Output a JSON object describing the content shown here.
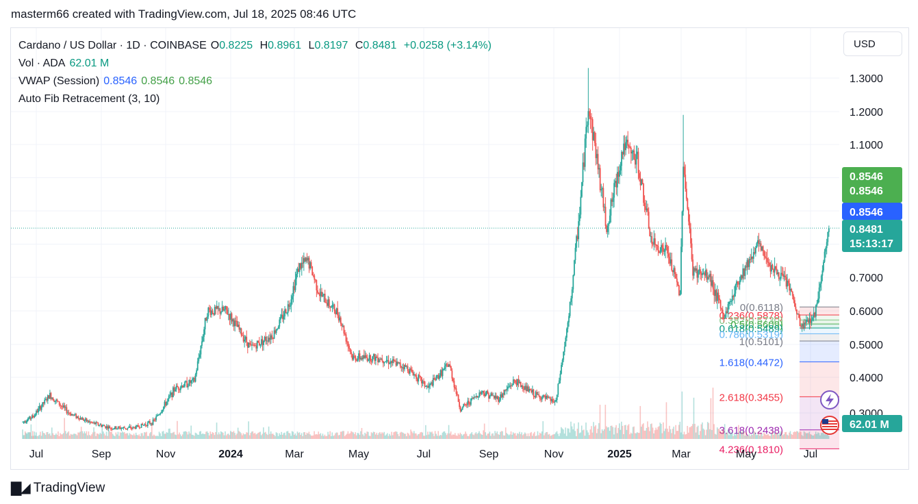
{
  "header": {
    "title": "masterm66 created with TradingView.com, Jul 18, 2025 08:46 UTC"
  },
  "legend": {
    "symbol": "Cardano / US Dollar · 1D · COINBASE",
    "open_label": "O",
    "open": "0.8225",
    "high_label": "H",
    "high": "0.8961",
    "low_label": "L",
    "low": "0.8197",
    "close_label": "C",
    "close": "0.8481",
    "change": "+0.0258 (+3.14%)",
    "vol_label": "Vol · ADA",
    "vol": "62.01 M",
    "vwap_label": "VWAP (Session)",
    "vwap1": "0.8546",
    "vwap2": "0.8546",
    "vwap3": "0.8546",
    "fib_label": "Auto Fib Retracement (3, 10)"
  },
  "currency": "USD",
  "price_tags": {
    "vwap_green_1": "0.8546",
    "vwap_green_2": "0.8546",
    "vwap_blue": "0.8546",
    "last_price": "0.8481",
    "countdown": "15:13:17",
    "volume": "62.01 M"
  },
  "colors": {
    "up": "#26a69a",
    "down": "#ef5350",
    "accent_blue": "#2962ff",
    "vwap_green": "#4caf50"
  },
  "footer": {
    "brand": "TradingView"
  },
  "chart_data": {
    "type": "candlestick",
    "symbol": "ADA/USD",
    "interval": "1D",
    "y_axis_ticks": [
      "1.3000",
      "1.2000",
      "1.1000",
      "0.7000",
      "0.6000",
      "0.5000",
      "0.4000",
      "0.3000"
    ],
    "x_axis_ticks": [
      "Jul",
      "Sep",
      "Nov",
      "2024",
      "Mar",
      "May",
      "Jul",
      "Sep",
      "Nov",
      "2025",
      "Mar",
      "May",
      "Jul"
    ],
    "price_trend": [
      {
        "date": "2023-06-15",
        "price": 0.27
      },
      {
        "date": "2023-06-28",
        "price": 0.29
      },
      {
        "date": "2023-07-14",
        "price": 0.35
      },
      {
        "date": "2023-08-01",
        "price": 0.3
      },
      {
        "date": "2023-08-20",
        "price": 0.27
      },
      {
        "date": "2023-09-10",
        "price": 0.25
      },
      {
        "date": "2023-10-01",
        "price": 0.25
      },
      {
        "date": "2023-10-20",
        "price": 0.27
      },
      {
        "date": "2023-11-10",
        "price": 0.37
      },
      {
        "date": "2023-11-28",
        "price": 0.39
      },
      {
        "date": "2023-12-10",
        "price": 0.6
      },
      {
        "date": "2023-12-28",
        "price": 0.6
      },
      {
        "date": "2024-01-20",
        "price": 0.49
      },
      {
        "date": "2024-02-10",
        "price": 0.53
      },
      {
        "date": "2024-02-25",
        "price": 0.62
      },
      {
        "date": "2024-03-05",
        "price": 0.73
      },
      {
        "date": "2024-03-14",
        "price": 0.75
      },
      {
        "date": "2024-03-25",
        "price": 0.65
      },
      {
        "date": "2024-04-12",
        "price": 0.59
      },
      {
        "date": "2024-04-25",
        "price": 0.46
      },
      {
        "date": "2024-05-20",
        "price": 0.46
      },
      {
        "date": "2024-06-15",
        "price": 0.43
      },
      {
        "date": "2024-07-05",
        "price": 0.37
      },
      {
        "date": "2024-07-25",
        "price": 0.44
      },
      {
        "date": "2024-08-05",
        "price": 0.31
      },
      {
        "date": "2024-08-25",
        "price": 0.36
      },
      {
        "date": "2024-09-10",
        "price": 0.34
      },
      {
        "date": "2024-09-25",
        "price": 0.39
      },
      {
        "date": "2024-10-15",
        "price": 0.35
      },
      {
        "date": "2024-11-03",
        "price": 0.33
      },
      {
        "date": "2024-11-15",
        "price": 0.58
      },
      {
        "date": "2024-11-25",
        "price": 0.9
      },
      {
        "date": "2024-12-03",
        "price": 1.22
      },
      {
        "date": "2024-12-10",
        "price": 1.08
      },
      {
        "date": "2024-12-20",
        "price": 0.85
      },
      {
        "date": "2025-01-05",
        "price": 1.1
      },
      {
        "date": "2025-01-18",
        "price": 1.05
      },
      {
        "date": "2025-02-01",
        "price": 0.8
      },
      {
        "date": "2025-02-15",
        "price": 0.78
      },
      {
        "date": "2025-02-28",
        "price": 0.65
      },
      {
        "date": "2025-03-03",
        "price": 1.05
      },
      {
        "date": "2025-03-12",
        "price": 0.72
      },
      {
        "date": "2025-03-28",
        "price": 0.7
      },
      {
        "date": "2025-04-10",
        "price": 0.58
      },
      {
        "date": "2025-04-25",
        "price": 0.7
      },
      {
        "date": "2025-05-12",
        "price": 0.8
      },
      {
        "date": "2025-05-28",
        "price": 0.72
      },
      {
        "date": "2025-06-10",
        "price": 0.68
      },
      {
        "date": "2025-06-22",
        "price": 0.55
      },
      {
        "date": "2025-07-05",
        "price": 0.59
      },
      {
        "date": "2025-07-12",
        "price": 0.73
      },
      {
        "date": "2025-07-18",
        "price": 0.8481
      }
    ],
    "wick_extremes": [
      {
        "date": "2024-12-03",
        "high": 1.33
      },
      {
        "date": "2025-03-03",
        "high": 1.19
      }
    ],
    "fib_levels": [
      {
        "label": "0(0.6118)",
        "ratio": 0,
        "price": 0.6118,
        "color": "#787b86"
      },
      {
        "label": "0.236(0.5878)",
        "ratio": 0.236,
        "price": 0.5878,
        "color": "#f23645"
      },
      {
        "label": "0.382(0.5730)",
        "ratio": 0.382,
        "price": 0.573,
        "color": "#81c784"
      },
      {
        "label": "0.5(0.5609)",
        "ratio": 0.5,
        "price": 0.5609,
        "color": "#4caf50"
      },
      {
        "label": "0.618(0.5489)",
        "ratio": 0.618,
        "price": 0.5489,
        "color": "#089981"
      },
      {
        "label": "0.786(0.5319)",
        "ratio": 0.786,
        "price": 0.5319,
        "color": "#64b5f6"
      },
      {
        "label": "1(0.5101)",
        "ratio": 1,
        "price": 0.5101,
        "color": "#787b86"
      },
      {
        "label": "1.618(0.4472)",
        "ratio": 1.618,
        "price": 0.4472,
        "color": "#2962ff"
      },
      {
        "label": "2.618(0.3455)",
        "ratio": 2.618,
        "price": 0.3455,
        "color": "#f23645"
      },
      {
        "label": "3.618(0.2438)",
        "ratio": 3.618,
        "price": 0.2438,
        "color": "#9c27b0"
      },
      {
        "label": "4.236(0.1810)",
        "ratio": 4.236,
        "price": 0.181,
        "color": "#e91e63"
      }
    ],
    "vwap": 0.8546,
    "last_price": 0.8481,
    "volume": "62.01 M"
  }
}
